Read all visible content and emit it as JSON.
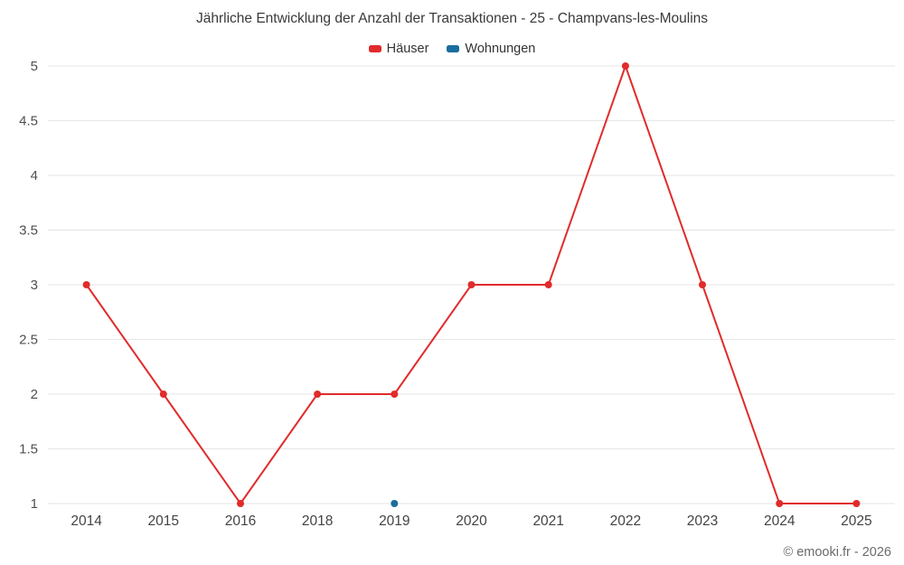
{
  "title": "Jährliche Entwicklung der Anzahl der Transaktionen - 25 - Champvans-les-Moulins",
  "credits": "© emooki.fr - 2026",
  "legend": [
    {
      "label": "Häuser",
      "color": "#e12b2b"
    },
    {
      "label": "Wohnungen",
      "color": "#1a6d9e"
    }
  ],
  "chart_data": {
    "type": "line",
    "title": "Jährliche Entwicklung der Anzahl der Transaktionen - 25 - Champvans-les-Moulins",
    "categories": [
      "2014",
      "2015",
      "2016",
      "2018",
      "2019",
      "2020",
      "2021",
      "2022",
      "2023",
      "2024",
      "2025"
    ],
    "series": [
      {
        "name": "Häuser",
        "color": "#e12b2b",
        "values": [
          3,
          2,
          1,
          2,
          2,
          3,
          3,
          5,
          3,
          1,
          1
        ]
      },
      {
        "name": "Wohnungen",
        "color": "#1a6d9e",
        "values": [
          null,
          null,
          null,
          null,
          1,
          null,
          null,
          null,
          null,
          null,
          null
        ]
      }
    ],
    "xlabel": "",
    "ylabel": "",
    "ylim": [
      1,
      5
    ],
    "ytick_step": 0.5,
    "grid": true,
    "gridline_color": "#e6e6e6",
    "legend_position": "top"
  }
}
